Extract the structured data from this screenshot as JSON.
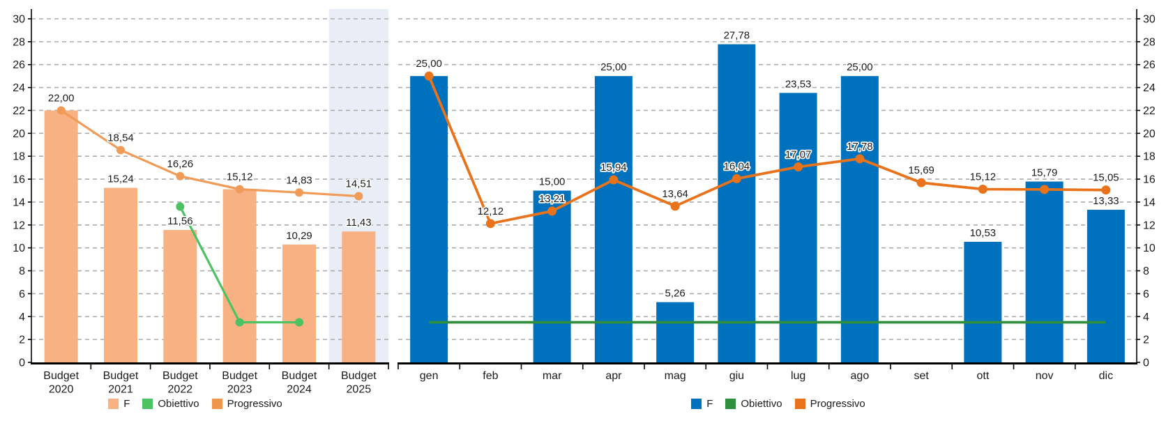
{
  "page": {
    "background": "#FFFFFF",
    "gridline_color": "#ABABAB",
    "axis_color": "#000000",
    "label_color": "#1A1A1A"
  },
  "chart_data": [
    {
      "type": "bar",
      "subtype": "bar-line-combo",
      "title": "",
      "xlabel": "",
      "ylabel": "",
      "categories": [
        [
          "Budget",
          "2020"
        ],
        [
          "Budget",
          "2021"
        ],
        [
          "Budget",
          "2022"
        ],
        [
          "Budget",
          "2023"
        ],
        [
          "Budget",
          "2024"
        ],
        [
          "Budget",
          "2025"
        ]
      ],
      "y_axis": {
        "min": 0,
        "max": 30,
        "step": 2,
        "side": "left",
        "grid": true
      },
      "highlight_index": 5,
      "highlight_color": "#E9EDF6",
      "series": [
        {
          "name": "F",
          "kind": "bar",
          "color": "#F8B183",
          "values": [
            22.0,
            15.24,
            11.56,
            15.12,
            10.29,
            11.43
          ],
          "labels": [
            "22,00",
            "15,24",
            "11,56",
            "15,12",
            "10,29",
            "11,43"
          ]
        },
        {
          "name": "Obiettivo",
          "kind": "line",
          "color": "#4CC263",
          "markers": true,
          "values": [
            null,
            null,
            13.6,
            3.5,
            3.5,
            null
          ],
          "labels": [
            "",
            "",
            "",
            "",
            "",
            ""
          ]
        },
        {
          "name": "Progressivo",
          "kind": "line",
          "color": "#F09B58",
          "markers": true,
          "values": [
            22.0,
            18.54,
            16.26,
            15.12,
            14.83,
            14.51
          ],
          "labels": [
            "22,00",
            "18,54",
            "16,26",
            "15,12",
            "14,83",
            "14,51"
          ]
        }
      ],
      "legend": [
        {
          "label": "F",
          "color": "#F8B183"
        },
        {
          "label": "Obiettivo",
          "color": "#4CC263"
        },
        {
          "label": "Progressivo",
          "color": "#F0964C"
        }
      ],
      "legend_position": "bottom"
    },
    {
      "type": "bar",
      "subtype": "bar-line-combo",
      "title": "",
      "xlabel": "",
      "ylabel": "",
      "categories": [
        [
          "gen"
        ],
        [
          "feb"
        ],
        [
          "mar"
        ],
        [
          "apr"
        ],
        [
          "mag"
        ],
        [
          "giu"
        ],
        [
          "lug"
        ],
        [
          "ago"
        ],
        [
          "set"
        ],
        [
          "ott"
        ],
        [
          "nov"
        ],
        [
          "dic"
        ]
      ],
      "y_axis": {
        "min": 0,
        "max": 30,
        "step": 2,
        "side": "right",
        "grid": true
      },
      "highlight_index": null,
      "series": [
        {
          "name": "F",
          "kind": "bar",
          "color": "#0072BD",
          "values": [
            25.0,
            null,
            15.0,
            25.0,
            5.26,
            27.78,
            23.53,
            25.0,
            null,
            10.53,
            15.79,
            13.33
          ],
          "labels": [
            "25,00",
            "",
            "15,00",
            "25,00",
            "5,26",
            "27,78",
            "23,53",
            "25,00",
            "",
            "10,53",
            "15,79",
            "13,33"
          ]
        },
        {
          "name": "Obiettivo",
          "kind": "line",
          "color": "#2F8F3E",
          "markers": false,
          "values": [
            3.5,
            3.5,
            3.5,
            3.5,
            3.5,
            3.5,
            3.5,
            3.5,
            3.5,
            3.5,
            3.5,
            3.5
          ],
          "labels": [
            "",
            "",
            "",
            "",
            "",
            "",
            "",
            "",
            "",
            "",
            "",
            ""
          ]
        },
        {
          "name": "Progressivo",
          "kind": "line",
          "color": "#E8731A",
          "markers": true,
          "values": [
            25.0,
            12.12,
            13.21,
            15.94,
            13.64,
            16.04,
            17.07,
            17.78,
            15.69,
            15.12,
            15.1,
            15.05
          ],
          "labels": [
            "25,00",
            "12,12",
            "13,21",
            "15,94",
            "13,64",
            "16,04",
            "17,07",
            "17,78",
            "15,69",
            "15,12",
            "",
            "15,05"
          ]
        }
      ],
      "legend": [
        {
          "label": "F",
          "color": "#0072BD"
        },
        {
          "label": "Obiettivo",
          "color": "#2F8F3E"
        },
        {
          "label": "Progressivo",
          "color": "#E8731A"
        }
      ],
      "legend_position": "bottom"
    }
  ]
}
